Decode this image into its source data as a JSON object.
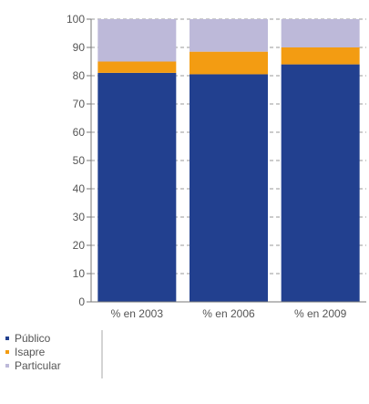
{
  "chart_data": {
    "type": "bar",
    "stacked": true,
    "title": "",
    "xlabel": "",
    "ylabel": "",
    "ylim": [
      0,
      100
    ],
    "yticks": [
      0,
      10,
      20,
      30,
      40,
      50,
      60,
      70,
      80,
      90,
      100
    ],
    "grid": "horizontal dashed",
    "legend_position": "bottom-left",
    "categories": [
      "% en 2003",
      "% en 2006",
      "% en 2009"
    ],
    "series": [
      {
        "name": "Público",
        "color": "#22408f",
        "values": [
          81,
          80.5,
          84
        ]
      },
      {
        "name": "Isapre",
        "color": "#f39c12",
        "values": [
          4,
          8,
          6
        ]
      },
      {
        "name": "Particular",
        "color": "#bdb9d9",
        "values": [
          15,
          11.5,
          10
        ]
      }
    ]
  }
}
